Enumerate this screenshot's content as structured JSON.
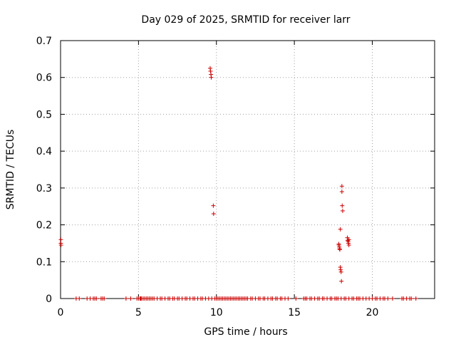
{
  "chart_data": {
    "type": "scatter",
    "title": "Day 029 of 2025, SRMTID for receiver larr",
    "xlabel": "GPS time / hours",
    "ylabel": "SRMTID / TECUs",
    "xlim": [
      0,
      24
    ],
    "ylim": [
      0,
      0.7
    ],
    "xticks": [
      0,
      5,
      10,
      15,
      20
    ],
    "yticks": [
      0,
      0.1,
      0.2,
      0.3,
      0.4,
      0.5,
      0.6,
      0.7
    ],
    "xtick_labels": [
      "0",
      "5",
      "10",
      "15",
      "20"
    ],
    "ytick_labels": [
      "0",
      "0.1",
      "0.2",
      "0.3",
      "0.4",
      "0.5",
      "0.6",
      "0.7"
    ],
    "grid": true,
    "marker": "+",
    "color": "#cc0000",
    "series": [
      {
        "name": "SRMTID",
        "x": [
          0.02,
          0.02,
          0.03,
          9.6,
          9.62,
          9.65,
          9.67,
          9.8,
          9.82,
          17.85,
          17.86,
          17.88,
          17.9,
          17.92,
          17.95,
          17.95,
          17.97,
          18.0,
          18.02,
          18.05,
          18.05,
          18.07,
          18.1,
          18.4,
          18.42,
          18.45,
          18.47,
          18.5,
          18.5,
          1.0,
          1.2,
          1.7,
          1.9,
          2.1,
          2.2,
          2.3,
          2.6,
          2.7,
          2.8,
          4.2,
          4.5,
          4.9,
          5.0,
          5.1,
          5.15,
          5.2,
          5.3,
          5.4,
          5.5,
          5.6,
          5.7,
          5.8,
          5.9,
          6.0,
          6.2,
          6.4,
          6.5,
          6.7,
          6.9,
          7.0,
          7.2,
          7.3,
          7.5,
          7.6,
          7.8,
          8.0,
          8.1,
          8.3,
          8.5,
          8.6,
          8.8,
          9.0,
          9.1,
          9.3,
          9.5,
          9.7,
          9.9,
          10.0,
          10.1,
          10.2,
          10.3,
          10.4,
          10.5,
          10.6,
          10.7,
          10.8,
          10.9,
          11.0,
          11.1,
          11.2,
          11.3,
          11.4,
          11.5,
          11.6,
          11.7,
          11.8,
          11.9,
          12.0,
          12.2,
          12.3,
          12.5,
          12.7,
          12.8,
          13.0,
          13.1,
          13.3,
          13.5,
          13.6,
          13.8,
          13.9,
          14.1,
          14.2,
          14.4,
          14.6,
          15.1,
          15.6,
          15.7,
          15.8,
          16.0,
          16.1,
          16.3,
          16.5,
          16.6,
          16.8,
          16.9,
          17.1,
          17.3,
          17.4,
          17.6,
          17.7,
          17.8,
          18.0,
          18.2,
          18.3,
          18.5,
          18.7,
          18.8,
          19.0,
          19.1,
          19.2,
          19.4,
          19.6,
          19.8,
          20.0,
          20.2,
          20.3,
          20.5,
          20.7,
          20.8,
          21.0,
          21.3,
          21.9,
          22.0,
          22.2,
          22.4,
          22.5,
          22.8
        ],
        "y": [
          0.16,
          0.15,
          0.145,
          0.625,
          0.617,
          0.608,
          0.6,
          0.252,
          0.23,
          0.148,
          0.145,
          0.14,
          0.135,
          0.133,
          0.188,
          0.085,
          0.078,
          0.072,
          0.047,
          0.305,
          0.29,
          0.252,
          0.238,
          0.165,
          0.158,
          0.155,
          0.15,
          0.16,
          0.145,
          0,
          0,
          0,
          0,
          0,
          0,
          0,
          0,
          0,
          0,
          0,
          0,
          0,
          0,
          0,
          0,
          0,
          0,
          0,
          0,
          0,
          0,
          0,
          0,
          0,
          0,
          0,
          0,
          0,
          0,
          0,
          0,
          0,
          0,
          0,
          0,
          0,
          0,
          0,
          0,
          0,
          0,
          0,
          0,
          0,
          0,
          0,
          0,
          0,
          0,
          0,
          0,
          0,
          0,
          0,
          0,
          0,
          0,
          0,
          0,
          0,
          0,
          0,
          0,
          0,
          0,
          0,
          0,
          0,
          0,
          0,
          0,
          0,
          0,
          0,
          0,
          0,
          0,
          0,
          0,
          0,
          0,
          0,
          0,
          0,
          0,
          0,
          0,
          0,
          0,
          0,
          0,
          0,
          0,
          0,
          0,
          0,
          0,
          0,
          0,
          0,
          0,
          0,
          0,
          0,
          0,
          0,
          0,
          0,
          0,
          0,
          0,
          0,
          0,
          0,
          0,
          0,
          0,
          0,
          0,
          0,
          0,
          0,
          0,
          0,
          0,
          0,
          0
        ]
      }
    ]
  }
}
